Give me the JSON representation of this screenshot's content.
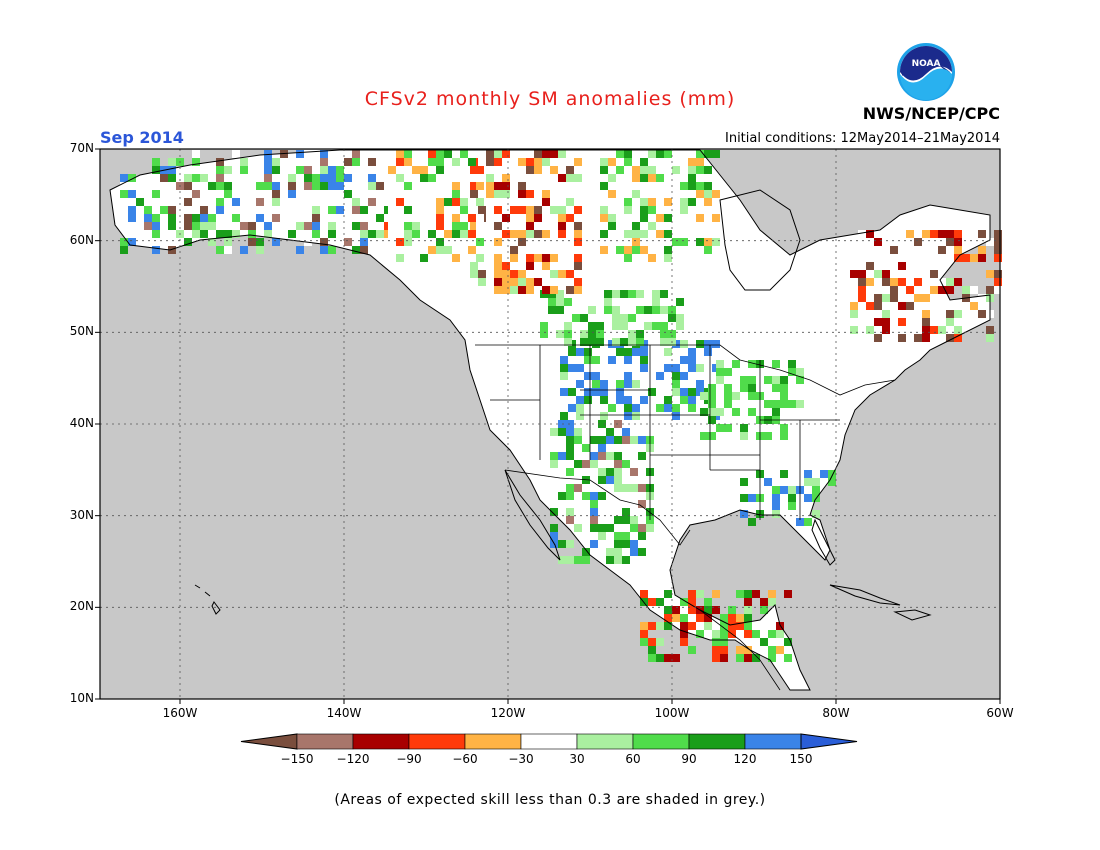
{
  "title": "CFSv2 monthly SM anomalies (mm)",
  "month": "Sep 2014",
  "org": "NWS/NCEP/CPC",
  "logo_text": "NOAA",
  "initial_conditions": "Initial conditions: 12May2014–21May2014",
  "lat_labels": [
    "70N",
    "60N",
    "50N",
    "40N",
    "30N",
    "20N",
    "10N"
  ],
  "lon_labels": [
    "160W",
    "140W",
    "120W",
    "100W",
    "80W",
    "60W"
  ],
  "colorbar": {
    "labels": [
      "−150",
      "−120",
      "−90",
      "−60",
      "−30",
      "30",
      "60",
      "90",
      "120",
      "150"
    ],
    "colors": [
      "#7a4e3d",
      "#a8766b",
      "#a80000",
      "#ff3a0a",
      "#ffb345",
      "#ffffff",
      "#aaf0a0",
      "#50dc4b",
      "#1a9e1a",
      "#3a84e8",
      "#2a5ed8"
    ]
  },
  "note": "(Areas of expected skill less than 0.3 are shaded in grey.)"
}
